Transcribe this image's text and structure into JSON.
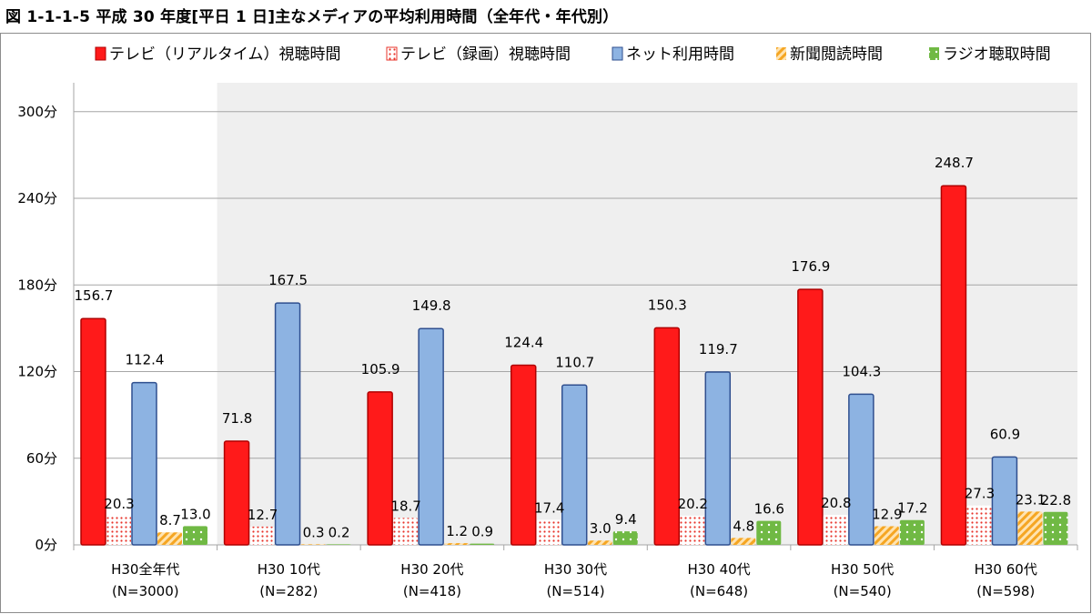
{
  "title": "図 1-1-1-5 平成 30 年度[平日 1 日]主なメディアの平均利用時間（全年代・年代別）",
  "chart_data": {
    "type": "bar",
    "categories": [
      "H30全年代",
      "H30 10代",
      "H30 20代",
      "H30 30代",
      "H30 40代",
      "H30 50代",
      "H30 60代"
    ],
    "sample_sizes": [
      "(N=3000)",
      "(N=282)",
      "(N=418)",
      "(N=514)",
      "(N=648)",
      "(N=540)",
      "(N=598)"
    ],
    "series": [
      {
        "name": "テレビ（リアルタイム）視聴時間",
        "color": "#ff1a1a",
        "pattern": "solid",
        "values": [
          156.7,
          71.8,
          105.9,
          124.4,
          150.3,
          176.9,
          248.7
        ]
      },
      {
        "name": "テレビ（録画）視聴時間",
        "color": "#e8332a",
        "pattern": "dots",
        "values": [
          20.3,
          12.7,
          18.7,
          17.4,
          20.2,
          20.8,
          27.3
        ]
      },
      {
        "name": "ネット利用時間",
        "color": "#8db3e2",
        "pattern": "solid",
        "values": [
          112.4,
          167.5,
          149.8,
          110.7,
          119.7,
          104.3,
          60.9
        ]
      },
      {
        "name": "新聞閲読時間",
        "color": "#f5b14a",
        "pattern": "stripes",
        "values": [
          8.7,
          0.3,
          1.2,
          3.0,
          4.8,
          12.9,
          23.1
        ]
      },
      {
        "name": "ラジオ聴取時間",
        "color": "#7ec24e",
        "pattern": "greendots",
        "values": [
          13.0,
          0.2,
          0.9,
          9.4,
          16.6,
          17.2,
          22.8
        ]
      }
    ],
    "value_labels": [
      [
        "156.7",
        "71.8",
        "105.9",
        "124.4",
        "150.3",
        "176.9",
        "248.7"
      ],
      [
        "20.3",
        "12.7",
        "18.7",
        "17.4",
        "20.2",
        "20.8",
        "27.3"
      ],
      [
        "112.4",
        "167.5",
        "149.8",
        "110.7",
        "119.7",
        "104.3",
        "60.9"
      ],
      [
        "8.7",
        "0.3",
        "1.2",
        "3.0",
        "4.8",
        "12.9",
        "23.1"
      ],
      [
        "13.0",
        "0.2",
        "0.9",
        "9.4",
        "16.6",
        "17.2",
        "22.8"
      ]
    ],
    "y_ticks": [
      0,
      60,
      120,
      180,
      240,
      300
    ],
    "y_tick_labels": [
      "0分",
      "60分",
      "120分",
      "180分",
      "240分",
      "300分"
    ],
    "ylim": [
      0,
      300
    ],
    "grid": true,
    "legend_position": "top",
    "highlight_band_color": "#efefef"
  }
}
